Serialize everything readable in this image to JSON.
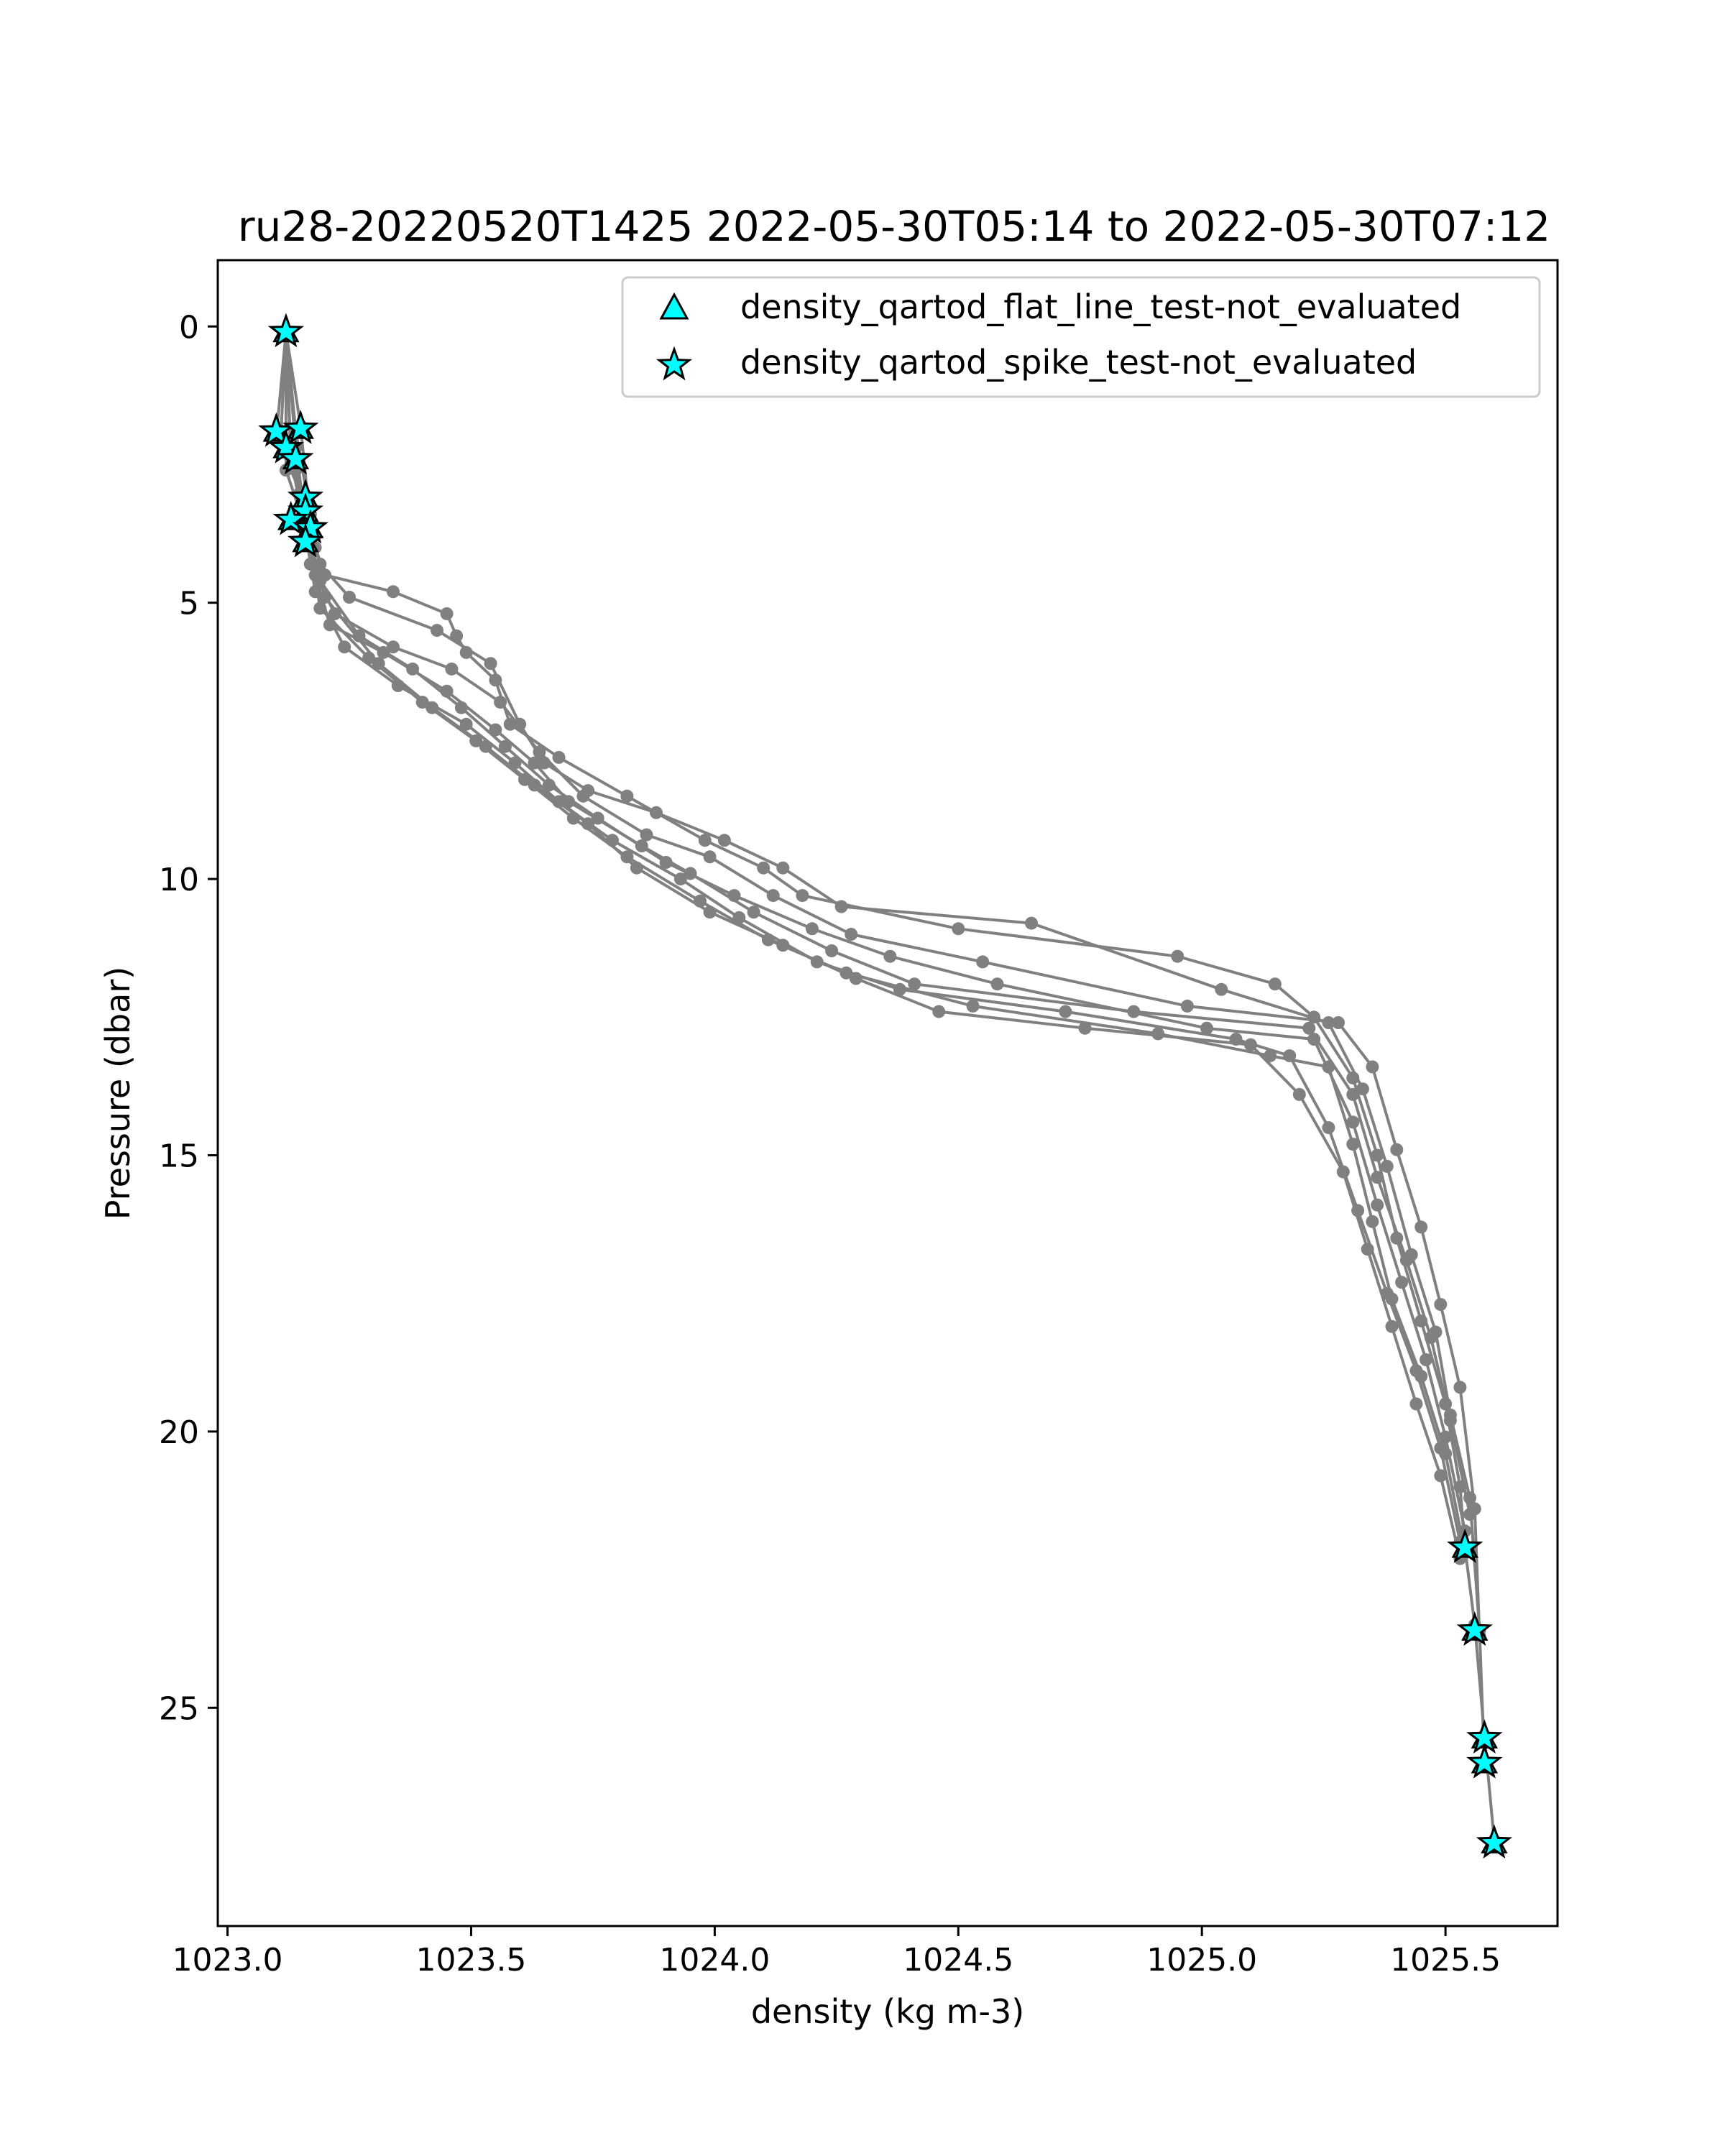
{
  "chart_data": {
    "type": "scatter",
    "title": "ru28-20220520T1425 2022-05-30T05:14 to 2022-05-30T07:12",
    "xlabel": "density (kg m-3)",
    "ylabel": "Pressure (dbar)",
    "xlim": [
      1022.98,
      1025.73
    ],
    "ylim": [
      28.95,
      -1.2
    ],
    "y_inverted": true,
    "x_ticks": [
      1023.0,
      1023.5,
      1024.0,
      1024.5,
      1025.0,
      1025.5
    ],
    "x_tick_labels": [
      "1023.0",
      "1023.5",
      "1024.0",
      "1024.5",
      "1025.0",
      "1025.5"
    ],
    "y_ticks": [
      0,
      5,
      10,
      15,
      20,
      25
    ],
    "y_tick_labels": [
      "0",
      "5",
      "10",
      "15",
      "20",
      "25"
    ],
    "grid": false,
    "legend_position": "top-right",
    "legend": [
      {
        "label": "density_qartod_flat_line_test-not_evaluated",
        "marker": "triangle",
        "color": "#00ffff"
      },
      {
        "label": "density_qartod_spike_test-not_evaluated",
        "marker": "star",
        "color": "#00ffff"
      }
    ],
    "profile_color": "#808080",
    "flag_color": "#00ffff",
    "profiles": [
      {
        "x": [
          1023.12,
          1023.11,
          1023.14,
          1023.16,
          1023.18,
          1023.2,
          1023.34,
          1023.45,
          1023.47,
          1023.49,
          1023.55,
          1023.58,
          1023.68,
          1023.82,
          1023.98,
          1024.1,
          1024.18,
          1024.5,
          1024.95,
          1025.15,
          1025.23,
          1025.31,
          1025.36,
          1025.4,
          1025.45,
          1025.5,
          1025.53,
          1025.54,
          1025.56,
          1025.58,
          1025.6
        ],
        "y": [
          0.1,
          1.9,
          2.6,
          3.3,
          4.0,
          4.5,
          4.8,
          5.2,
          5.6,
          5.9,
          6.4,
          7.2,
          7.8,
          8.5,
          9.3,
          9.8,
          10.3,
          10.9,
          11.4,
          11.9,
          12.5,
          13.6,
          15.0,
          16.5,
          18.0,
          19.5,
          21.0,
          22.1,
          23.5,
          25.5,
          27.4
        ]
      },
      {
        "x": [
          1023.12,
          1023.15,
          1023.17,
          1023.19,
          1023.25,
          1023.43,
          1023.54,
          1023.6,
          1023.65,
          1023.74,
          1023.88,
          1024.02,
          1024.14,
          1024.26,
          1024.65,
          1025.04,
          1025.26,
          1025.33,
          1025.38,
          1025.43,
          1025.48,
          1025.51,
          1025.55,
          1025.57,
          1025.58
        ],
        "y": [
          0.1,
          1.8,
          3.6,
          4.3,
          4.9,
          5.5,
          6.1,
          7.2,
          7.9,
          8.4,
          8.8,
          9.3,
          9.8,
          10.5,
          10.8,
          12.0,
          12.6,
          13.8,
          15.2,
          16.8,
          18.2,
          19.7,
          21.2,
          23.6,
          26.0
        ]
      },
      {
        "x": [
          1023.12,
          1023.1,
          1023.15,
          1023.17,
          1023.22,
          1023.34,
          1023.46,
          1023.56,
          1023.64,
          1023.73,
          1023.86,
          1023.99,
          1024.12,
          1024.28,
          1024.55,
          1024.97,
          1025.28,
          1025.35,
          1025.4,
          1025.45,
          1025.49,
          1025.53,
          1025.56,
          1025.57
        ],
        "y": [
          0.1,
          2.0,
          3.0,
          4.3,
          5.2,
          5.8,
          6.2,
          6.8,
          7.7,
          8.5,
          9.2,
          9.6,
          10.3,
          11.0,
          11.5,
          12.3,
          12.6,
          13.4,
          14.9,
          16.3,
          17.7,
          19.2,
          21.4,
          23.7
        ]
      },
      {
        "x": [
          1023.12,
          1023.13,
          1023.16,
          1023.18,
          1023.21,
          1023.32,
          1023.45,
          1023.55,
          1023.63,
          1023.7,
          1023.85,
          1023.95,
          1024.08,
          1024.24,
          1024.41,
          1024.86,
          1025.22,
          1025.31,
          1025.36,
          1025.42,
          1025.47,
          1025.51,
          1025.55
        ],
        "y": [
          0.1,
          2.3,
          3.3,
          4.5,
          5.4,
          5.9,
          6.6,
          7.3,
          7.9,
          8.6,
          9.4,
          9.9,
          10.6,
          11.3,
          11.9,
          12.4,
          12.7,
          13.9,
          15.4,
          16.9,
          18.3,
          19.8,
          21.5
        ]
      },
      {
        "x": [
          1023.12,
          1023.14,
          1023.16,
          1023.19,
          1023.27,
          1023.38,
          1023.48,
          1023.57,
          1023.66,
          1023.76,
          1023.9,
          1024.04,
          1024.2,
          1024.36,
          1024.58,
          1025.01,
          1025.23,
          1025.31,
          1025.36,
          1025.41,
          1025.46,
          1025.5,
          1025.54
        ],
        "y": [
          0.1,
          2.2,
          3.5,
          4.6,
          5.6,
          6.2,
          6.9,
          7.6,
          8.3,
          8.9,
          9.7,
          10.3,
          10.9,
          11.4,
          11.9,
          12.7,
          12.9,
          14.4,
          15.9,
          17.3,
          18.7,
          20.1,
          21.8
        ]
      },
      {
        "x": [
          1023.12,
          1023.13,
          1023.16,
          1023.18,
          1023.24,
          1023.35,
          1023.49,
          1023.59,
          1023.68,
          1023.79,
          1023.93,
          1024.05,
          1024.21,
          1024.38,
          1024.72,
          1025.07,
          1025.18,
          1025.26,
          1025.32,
          1025.38,
          1025.44,
          1025.49,
          1025.53
        ],
        "y": [
          0.1,
          2.4,
          3.7,
          4.8,
          5.8,
          6.5,
          7.2,
          7.9,
          8.6,
          9.3,
          10.0,
          10.7,
          11.5,
          12.0,
          12.4,
          12.9,
          13.2,
          14.5,
          16.0,
          17.5,
          18.9,
          20.3,
          22.0
        ]
      },
      {
        "x": [
          1023.12,
          1023.12,
          1023.17,
          1023.19,
          1023.29,
          1023.4,
          1023.51,
          1023.61,
          1023.71,
          1023.82,
          1023.97,
          1024.11,
          1024.27,
          1024.53,
          1024.91,
          1025.14,
          1025.26,
          1025.31,
          1025.35,
          1025.39,
          1025.45,
          1025.5,
          1025.54
        ],
        "y": [
          0.1,
          2.6,
          3.9,
          5.1,
          6.0,
          6.8,
          7.5,
          8.2,
          8.9,
          9.6,
          10.4,
          11.1,
          11.7,
          12.3,
          12.8,
          13.2,
          13.4,
          14.8,
          16.2,
          17.6,
          19.0,
          20.4,
          22.2
        ]
      },
      {
        "x": [
          1023.12,
          1023.14,
          1023.17,
          1023.2,
          1023.31,
          1023.42,
          1023.53,
          1023.63,
          1023.74,
          1023.84,
          1023.99,
          1024.14,
          1024.29,
          1024.46,
          1024.76,
          1025.1,
          1025.2,
          1025.29,
          1025.34,
          1025.39,
          1025.44,
          1025.49,
          1025.53
        ],
        "y": [
          0.1,
          1.9,
          3.4,
          4.9,
          6.1,
          6.9,
          7.6,
          8.3,
          9.0,
          9.8,
          10.6,
          11.2,
          11.8,
          12.4,
          12.7,
          13.0,
          13.9,
          15.3,
          16.7,
          18.1,
          19.5,
          20.8,
          22.3
        ]
      }
    ],
    "flags": {
      "flat_line_test_not_evaluated": {
        "x": [
          1023.12,
          1023.1,
          1023.12,
          1023.15,
          1023.14,
          1023.16,
          1023.16,
          1023.13,
          1023.17,
          1023.16,
          1025.54,
          1025.56,
          1025.58,
          1025.58,
          1025.6
        ],
        "y": [
          0.1,
          1.9,
          2.2,
          1.85,
          2.4,
          3.1,
          3.35,
          3.5,
          3.65,
          3.9,
          22.1,
          23.6,
          25.55,
          26.0,
          27.45
        ]
      },
      "spike_test_not_evaluated": {
        "x": [
          1023.12,
          1023.1,
          1023.12,
          1023.15,
          1023.14,
          1023.16,
          1023.16,
          1023.13,
          1023.17,
          1023.16,
          1025.54,
          1025.56,
          1025.58,
          1025.58,
          1025.6
        ],
        "y": [
          0.1,
          1.9,
          2.2,
          1.85,
          2.4,
          3.1,
          3.35,
          3.5,
          3.65,
          3.9,
          22.1,
          23.6,
          25.55,
          26.0,
          27.45
        ]
      }
    }
  }
}
